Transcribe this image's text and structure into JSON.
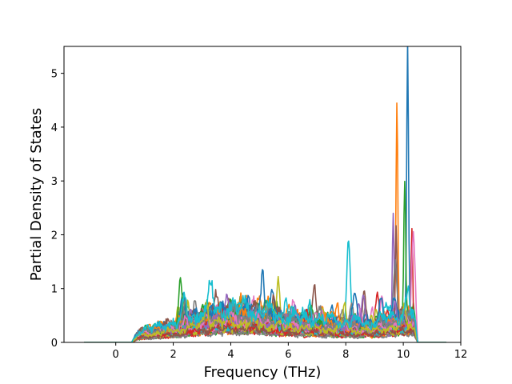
{
  "chart_data": {
    "type": "line",
    "title": "",
    "xlabel": "Frequency (THz)",
    "ylabel": "Partial Density of States",
    "xlim": [
      -1.8,
      12.0
    ],
    "ylim": [
      0,
      5.5
    ],
    "xticks": [
      "0",
      "2",
      "4",
      "6",
      "8",
      "10",
      "12"
    ],
    "xtick_values": [
      0,
      2,
      4,
      6,
      8,
      10,
      12
    ],
    "yticks": [
      "0",
      "1",
      "2",
      "3",
      "4",
      "5"
    ],
    "ytick_values": [
      0,
      1,
      2,
      3,
      4,
      5
    ],
    "grid": false,
    "legend": "none",
    "series_count": 40,
    "x_range": [
      -1.1,
      11.5
    ],
    "nonzero_range": [
      0.55,
      10.5
    ],
    "palette": [
      "#1f77b4",
      "#ff7f0e",
      "#2ca02c",
      "#d62728",
      "#9467bd",
      "#8c564b",
      "#e377c2",
      "#7f7f7f",
      "#bcbd22",
      "#17becf"
    ],
    "peaks": [
      {
        "x": 10.15,
        "y": 5.23
      },
      {
        "x": 9.78,
        "y": 4.45
      },
      {
        "x": 10.05,
        "y": 2.85
      },
      {
        "x": 10.3,
        "y": 2.28
      },
      {
        "x": 9.65,
        "y": 2.47
      },
      {
        "x": 9.75,
        "y": 2.35
      },
      {
        "x": 10.35,
        "y": 1.95
      },
      {
        "x": 9.72,
        "y": 1.55
      },
      {
        "x": 5.65,
        "y": 1.37
      },
      {
        "x": 8.1,
        "y": 1.37
      },
      {
        "x": 5.1,
        "y": 1.24
      },
      {
        "x": 4.35,
        "y": 1.06
      },
      {
        "x": 3.95,
        "y": 0.98
      },
      {
        "x": 9.1,
        "y": 0.98
      },
      {
        "x": 8.45,
        "y": 0.85
      },
      {
        "x": 6.9,
        "y": 0.88
      }
    ]
  }
}
